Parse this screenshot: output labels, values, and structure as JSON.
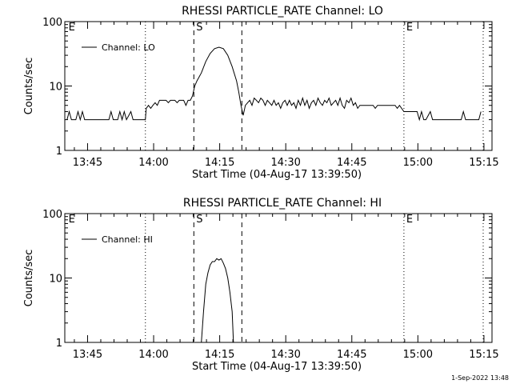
{
  "page_footer": {
    "timestamp": "1-Sep-2022 13:48"
  },
  "chart_data": [
    {
      "type": "line",
      "title": "RHESSI PARTICLE_RATE Channel: LO",
      "xlabel": "Start Time (04-Aug-17 13:39:50)",
      "ylabel": "Counts/sec",
      "yscale": "log",
      "ylim": [
        1,
        100
      ],
      "xlim_minutes_after_start": [
        0,
        97
      ],
      "ytick_labels": [
        "1",
        "10",
        "100"
      ],
      "xtick_labels": [
        "13:45",
        "14:00",
        "14:15",
        "14:30",
        "14:45",
        "15:00",
        "15:15"
      ],
      "legend": {
        "label": "Channel: LO",
        "placement": "top-left"
      },
      "markers": [
        {
          "label": "E",
          "x": 0.3,
          "style": "none"
        },
        {
          "label": "",
          "x": 18.3,
          "style": "dotted"
        },
        {
          "label": "S",
          "x": 29.3,
          "style": "dashed"
        },
        {
          "label": "",
          "x": 40.2,
          "style": "dashed"
        },
        {
          "label": "E",
          "x": 77.0,
          "style": "dotted"
        },
        {
          "label": "",
          "x": 95.0,
          "style": "dotted"
        }
      ],
      "series": [
        {
          "name": "Channel: LO",
          "points": [
            [
              0.5,
              3
            ],
            [
              1,
              4
            ],
            [
              1.5,
              3
            ],
            [
              2.5,
              3
            ],
            [
              3,
              4
            ],
            [
              3.5,
              3
            ],
            [
              4,
              4
            ],
            [
              4.5,
              3
            ],
            [
              10,
              3
            ],
            [
              10.5,
              4
            ],
            [
              11,
              3
            ],
            [
              12,
              3
            ],
            [
              12.5,
              4
            ],
            [
              13,
              3
            ],
            [
              13.5,
              4
            ],
            [
              14,
              3
            ],
            [
              15,
              4
            ],
            [
              15.5,
              3
            ],
            [
              18.3,
              3
            ],
            [
              18.5,
              4.5
            ],
            [
              19,
              5
            ],
            [
              19.5,
              4.5
            ],
            [
              20,
              5
            ],
            [
              20.5,
              5.5
            ],
            [
              21,
              5
            ],
            [
              21.5,
              6
            ],
            [
              22,
              6
            ],
            [
              23,
              6
            ],
            [
              23.5,
              5.5
            ],
            [
              24,
              6
            ],
            [
              25,
              6
            ],
            [
              25.5,
              5.5
            ],
            [
              26,
              6
            ],
            [
              27,
              6
            ],
            [
              27.5,
              5
            ],
            [
              28,
              6
            ],
            [
              28.5,
              6
            ],
            [
              29,
              7
            ],
            [
              29.5,
              10
            ],
            [
              30,
              12
            ],
            [
              31,
              16
            ],
            [
              32,
              24
            ],
            [
              33,
              32
            ],
            [
              34,
              38
            ],
            [
              35,
              40
            ],
            [
              36,
              38
            ],
            [
              37,
              30
            ],
            [
              38,
              20
            ],
            [
              39,
              12
            ],
            [
              39.5,
              8
            ],
            [
              40,
              5
            ],
            [
              40.5,
              3.5
            ],
            [
              41,
              5
            ],
            [
              41.5,
              5.5
            ],
            [
              42,
              6
            ],
            [
              42.5,
              5
            ],
            [
              43,
              6.5
            ],
            [
              43.5,
              6
            ],
            [
              44,
              5.5
            ],
            [
              44.5,
              6.5
            ],
            [
              45,
              6
            ],
            [
              45.5,
              5
            ],
            [
              46,
              6
            ],
            [
              47,
              5
            ],
            [
              47.5,
              6
            ],
            [
              48,
              5
            ],
            [
              48.5,
              5.5
            ],
            [
              49,
              4.5
            ],
            [
              49.5,
              5.5
            ],
            [
              50,
              6
            ],
            [
              50.5,
              5
            ],
            [
              51,
              6
            ],
            [
              51.5,
              5
            ],
            [
              52,
              5.5
            ],
            [
              52.5,
              4.5
            ],
            [
              53,
              6
            ],
            [
              53.5,
              5
            ],
            [
              54,
              6.5
            ],
            [
              54.5,
              5
            ],
            [
              55,
              6
            ],
            [
              55.5,
              4.5
            ],
            [
              56,
              5.5
            ],
            [
              56.5,
              6
            ],
            [
              57,
              5
            ],
            [
              57.5,
              6.5
            ],
            [
              58,
              5.5
            ],
            [
              58.5,
              5
            ],
            [
              59,
              6
            ],
            [
              59.5,
              5.5
            ],
            [
              60,
              6.5
            ],
            [
              60.5,
              5
            ],
            [
              61,
              5.5
            ],
            [
              61.5,
              6
            ],
            [
              62,
              5
            ],
            [
              62.5,
              6.5
            ],
            [
              63,
              5
            ],
            [
              63.5,
              4.5
            ],
            [
              64,
              6
            ],
            [
              64.5,
              5.5
            ],
            [
              65,
              6.5
            ],
            [
              65.5,
              5
            ],
            [
              66,
              5.5
            ],
            [
              66.5,
              4.5
            ],
            [
              67,
              5
            ],
            [
              68,
              5
            ],
            [
              69,
              5
            ],
            [
              70,
              5
            ],
            [
              70.5,
              4.5
            ],
            [
              71,
              5
            ],
            [
              72,
              5
            ],
            [
              73,
              5
            ],
            [
              74,
              5
            ],
            [
              75,
              5
            ],
            [
              75.5,
              4.5
            ],
            [
              76,
              5
            ],
            [
              77,
              4
            ],
            [
              78,
              4
            ],
            [
              79,
              4
            ],
            [
              80,
              4
            ],
            [
              80.5,
              3
            ],
            [
              81,
              4
            ],
            [
              81.5,
              3
            ],
            [
              82,
              3
            ],
            [
              83,
              4
            ],
            [
              83.5,
              3
            ],
            [
              85,
              3
            ],
            [
              86,
              3
            ],
            [
              87,
              3
            ],
            [
              88,
              3
            ],
            [
              89,
              3
            ],
            [
              90,
              3
            ],
            [
              90.5,
              4
            ],
            [
              91,
              3
            ],
            [
              92,
              3
            ],
            [
              93,
              3
            ],
            [
              94,
              3
            ],
            [
              94.5,
              4
            ]
          ]
        }
      ]
    },
    {
      "type": "line",
      "title": "RHESSI PARTICLE_RATE Channel: HI",
      "xlabel": "Start Time (04-Aug-17 13:39:50)",
      "ylabel": "Counts/sec",
      "yscale": "log",
      "ylim": [
        1,
        100
      ],
      "xlim_minutes_after_start": [
        0,
        97
      ],
      "ytick_labels": [
        "1",
        "10",
        "100"
      ],
      "xtick_labels": [
        "13:45",
        "14:00",
        "14:15",
        "14:30",
        "14:45",
        "15:00",
        "15:15"
      ],
      "legend": {
        "label": "Channel: HI",
        "placement": "top-left"
      },
      "markers": [
        {
          "label": "E",
          "x": 0.3,
          "style": "none"
        },
        {
          "label": "",
          "x": 18.3,
          "style": "dotted"
        },
        {
          "label": "S",
          "x": 29.3,
          "style": "dashed"
        },
        {
          "label": "",
          "x": 40.2,
          "style": "dashed"
        },
        {
          "label": "E",
          "x": 77.0,
          "style": "dotted"
        },
        {
          "label": "",
          "x": 95.0,
          "style": "dotted"
        }
      ],
      "series": [
        {
          "name": "Channel: HI",
          "points": [
            [
              31,
              1
            ],
            [
              31.5,
              3
            ],
            [
              32,
              8
            ],
            [
              32.5,
              12
            ],
            [
              33,
              16
            ],
            [
              33.5,
              18
            ],
            [
              34,
              18
            ],
            [
              34.5,
              20
            ],
            [
              35,
              19
            ],
            [
              35.5,
              20
            ],
            [
              36,
              17
            ],
            [
              36.5,
              14
            ],
            [
              37,
              10
            ],
            [
              37.5,
              6
            ],
            [
              38,
              3
            ],
            [
              38.3,
              1
            ]
          ]
        }
      ]
    }
  ]
}
